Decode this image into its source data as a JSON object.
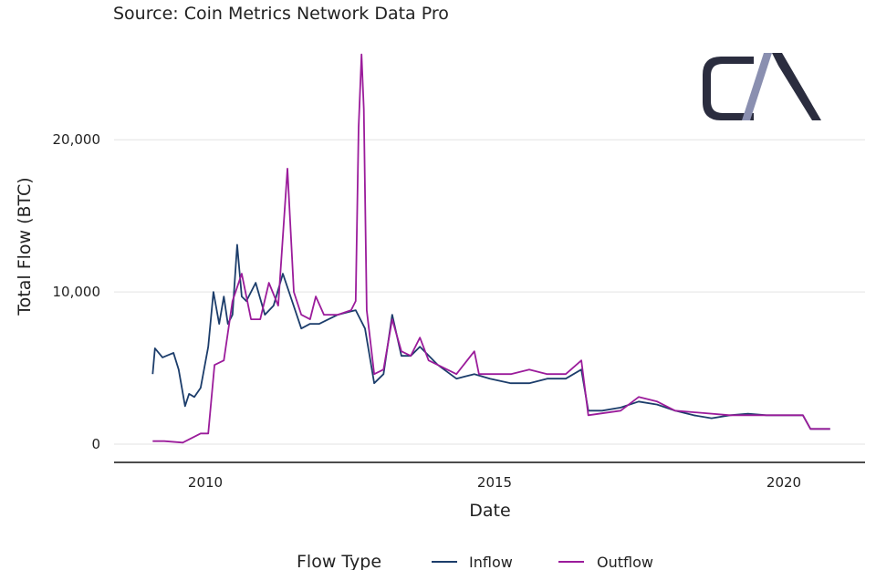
{
  "chart_data": {
    "type": "line",
    "subtitle": "Source: Coin Metrics Network Data Pro",
    "xlabel": "Date",
    "ylabel": "Total Flow (BTC)",
    "xlim": [
      2008.35,
      2021.3
    ],
    "ylim": [
      -1200,
      27000
    ],
    "x_ticks": [
      2010,
      2015,
      2020
    ],
    "x_tick_labels": [
      "2010",
      "2015",
      "2020"
    ],
    "y_ticks": [
      0,
      10000,
      20000
    ],
    "y_tick_labels": [
      "0",
      "10,000",
      "20,000"
    ],
    "grid": "horizontal",
    "legend": {
      "title": "Flow Type",
      "placement": "bottom"
    },
    "logo_text": "CM",
    "series": [
      {
        "name": "Inflow",
        "color": "#1c3d6b",
        "x": [
          2009.09,
          2009.13,
          2009.26,
          2009.45,
          2009.54,
          2009.65,
          2009.72,
          2009.81,
          2009.92,
          2010.05,
          2010.14,
          2010.24,
          2010.32,
          2010.39,
          2010.47,
          2010.55,
          2010.63,
          2010.71,
          2010.87,
          2011.03,
          2011.18,
          2011.34,
          2011.5,
          2011.66,
          2011.81,
          2011.97,
          2012.13,
          2012.29,
          2012.6,
          2012.76,
          2012.92,
          2013.08,
          2013.23,
          2013.39,
          2013.55,
          2013.71,
          2014.02,
          2014.34,
          2014.65,
          2014.92,
          2015.28,
          2015.6,
          2015.91,
          2016.23,
          2016.5,
          2016.62,
          2016.86,
          2017.18,
          2017.49,
          2017.81,
          2018.12,
          2018.44,
          2018.75,
          2019.07,
          2019.38,
          2019.7,
          2020.02,
          2020.33,
          2020.46,
          2020.8
        ],
        "y": [
          4600,
          6300,
          5700,
          6000,
          4900,
          2500,
          3300,
          3100,
          3700,
          6400,
          10000,
          7900,
          9700,
          7900,
          8500,
          13100,
          9700,
          9400,
          10600,
          8500,
          9100,
          11200,
          9400,
          7600,
          7900,
          7900,
          8200,
          8500,
          8800,
          7600,
          4000,
          4600,
          8500,
          5800,
          5800,
          6400,
          5200,
          4300,
          4600,
          4300,
          4000,
          4000,
          4300,
          4300,
          4900,
          2200,
          2200,
          2400,
          2800,
          2600,
          2200,
          1900,
          1700,
          1900,
          2000,
          1900,
          1900,
          1900,
          1000,
          1000
        ]
      },
      {
        "name": "Outflow",
        "color": "#9b1c9b",
        "x": [
          2009.09,
          2009.29,
          2009.61,
          2009.92,
          2010.05,
          2010.16,
          2010.32,
          2010.47,
          2010.63,
          2010.79,
          2010.95,
          2011.1,
          2011.26,
          2011.42,
          2011.53,
          2011.66,
          2011.81,
          2011.91,
          2012.05,
          2012.29,
          2012.52,
          2012.6,
          2012.65,
          2012.7,
          2012.74,
          2012.79,
          2012.92,
          2013.08,
          2013.23,
          2013.39,
          2013.55,
          2013.71,
          2013.86,
          2014.02,
          2014.34,
          2014.65,
          2014.73,
          2014.97,
          2015.28,
          2015.6,
          2015.91,
          2016.23,
          2016.5,
          2016.62,
          2017.18,
          2017.49,
          2017.81,
          2018.12,
          2019.07,
          2020.02,
          2020.33,
          2020.46,
          2020.8
        ],
        "y": [
          200,
          200,
          100,
          700,
          700,
          5200,
          5500,
          9400,
          11200,
          8200,
          8200,
          10600,
          9100,
          18100,
          10000,
          8500,
          8200,
          9700,
          8500,
          8500,
          8800,
          9400,
          20800,
          25600,
          22000,
          8800,
          4600,
          4900,
          8200,
          6100,
          5800,
          7000,
          5500,
          5200,
          4600,
          6100,
          4600,
          4600,
          4600,
          4900,
          4600,
          4600,
          5500,
          1900,
          2200,
          3100,
          2800,
          2200,
          1900,
          1900,
          1900,
          1000,
          1000
        ]
      }
    ]
  }
}
